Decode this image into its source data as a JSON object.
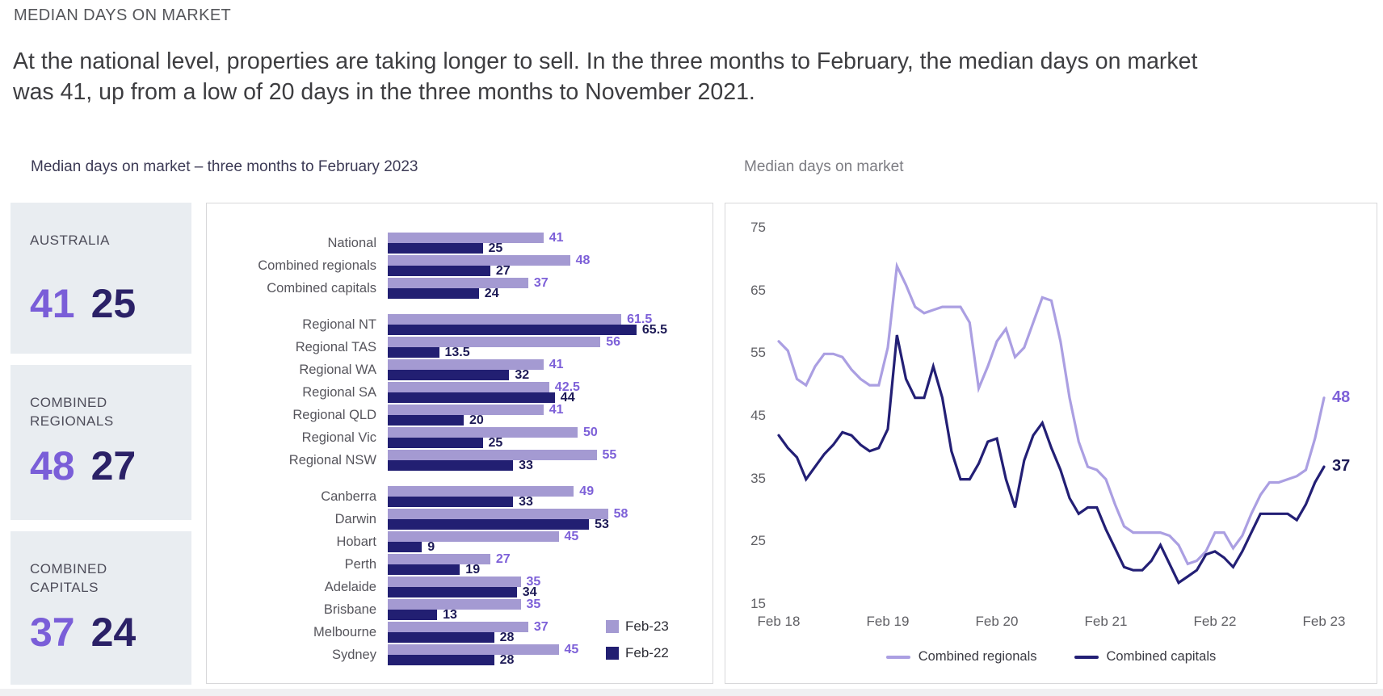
{
  "page": {
    "title": "MEDIAN DAYS ON MARKET",
    "intro": "At the national level, properties are taking longer to sell. In the three months to February, the median days on market was 41, up from a low of 20 days in the three months to November 2021."
  },
  "colors": {
    "feb23_bar": "#a49ad2",
    "feb22_bar": "#221f72",
    "feb23_label": "#7d60d8",
    "feb22_label": "#1d1a56",
    "feb23_accent": "#7a5ed8",
    "feb22_accent": "#2b2167",
    "regionals_line": "#ab9fe2",
    "capitals_line": "#231f75",
    "card_bg": "#e9edf1"
  },
  "stat_cards": [
    {
      "label": "AUSTRALIA",
      "feb23": "41",
      "feb22": "25"
    },
    {
      "label": "COMBINED REGIONALS",
      "feb23": "48",
      "feb22": "27"
    },
    {
      "label": "COMBINED CAPITALS",
      "feb23": "37",
      "feb22": "24"
    }
  ],
  "chart_data": [
    {
      "type": "bar",
      "orientation": "horizontal",
      "title": "Median days on market – three months to February 2023",
      "legend": [
        "Feb-23",
        "Feb-22"
      ],
      "xlim": [
        0,
        66
      ],
      "groups": [
        {
          "categories": [
            "National",
            "Combined regionals",
            "Combined capitals"
          ],
          "feb23": [
            41,
            48,
            37
          ],
          "feb22": [
            25,
            27,
            24
          ]
        },
        {
          "categories": [
            "Regional NT",
            "Regional TAS",
            "Regional WA",
            "Regional SA",
            "Regional QLD",
            "Regional Vic",
            "Regional NSW"
          ],
          "feb23": [
            61.5,
            56,
            41,
            42.5,
            41,
            50,
            55
          ],
          "feb22": [
            65.5,
            13.5,
            32,
            44,
            20,
            25,
            33
          ]
        },
        {
          "categories": [
            "Canberra",
            "Darwin",
            "Hobart",
            "Perth",
            "Adelaide",
            "Brisbane",
            "Melbourne",
            "Sydney"
          ],
          "feb23": [
            49,
            58,
            45,
            27,
            35,
            35,
            37,
            45
          ],
          "feb22": [
            33,
            53,
            9,
            19,
            34,
            13,
            28,
            28
          ]
        }
      ]
    },
    {
      "type": "line",
      "title": "Median days on market",
      "ylim": [
        15,
        75
      ],
      "y_ticks": [
        75,
        65,
        55,
        45,
        35,
        25,
        15
      ],
      "x_tick_labels": [
        "Feb 18",
        "Feb 19",
        "Feb 20",
        "Feb 21",
        "Feb 22",
        "Feb 23"
      ],
      "x_unit": "monthly, Feb 2018 to Feb 2023",
      "legend_position": "bottom",
      "series": [
        {
          "name": "Combined regionals",
          "color": "#ab9fe2",
          "end_label": "48",
          "values": [
            57,
            55.5,
            51,
            50,
            53,
            55,
            55,
            54.5,
            52.5,
            51,
            50,
            50,
            56,
            69,
            66,
            62.5,
            61.5,
            62,
            62.5,
            62.5,
            62.5,
            60,
            49.5,
            53,
            57,
            59,
            54.5,
            56,
            60,
            64,
            63.5,
            57,
            48,
            41,
            37,
            36.5,
            35,
            31,
            27.5,
            26.5,
            26.5,
            26.5,
            26.5,
            26,
            24.5,
            21.5,
            22,
            23.5,
            26.5,
            26.5,
            24,
            26,
            29.5,
            32.5,
            34.5,
            34.5,
            35,
            35.5,
            36.5,
            41.5,
            48
          ]
        },
        {
          "name": "Combined capitals",
          "color": "#231f75",
          "end_label": "37",
          "values": [
            42,
            40,
            38.5,
            35,
            37,
            39,
            40.5,
            42.5,
            42,
            40.5,
            39.5,
            40,
            43,
            58,
            51,
            48,
            48,
            53,
            48,
            39.5,
            35,
            35,
            37.5,
            41,
            41.5,
            35,
            30.5,
            38,
            42,
            44,
            40,
            36.5,
            32,
            29.5,
            30.5,
            30.5,
            27,
            24,
            21,
            20.5,
            20.5,
            22,
            24.5,
            21.5,
            18.5,
            19.5,
            20.5,
            23,
            23.5,
            22.5,
            21,
            23.5,
            26.5,
            29.5,
            29.5,
            29.5,
            29.5,
            28.5,
            31,
            34.5,
            37
          ]
        }
      ]
    }
  ]
}
